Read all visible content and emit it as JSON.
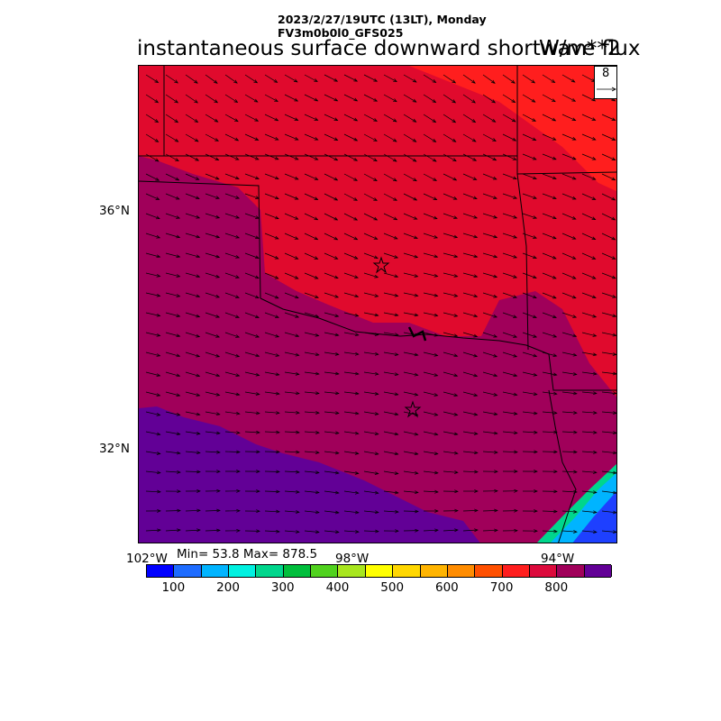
{
  "header": {
    "datetime": "2023/2/27/19UTC (13LT), Monday",
    "model": "FV3m0b0l0_GFS025",
    "title": "instantaneous surface downward shortwave flux",
    "units": "W/m**2"
  },
  "vector_legend": {
    "value": "8"
  },
  "axes": {
    "lat_labels": [
      "36°N",
      "32°N"
    ],
    "lon_labels": [
      "102°W",
      "98°W",
      "94°W"
    ]
  },
  "stats": {
    "text": "Min= 53.8 Max= 878.5"
  },
  "colorbar": {
    "colors": [
      "#0000ff",
      "#1e6cff",
      "#00b4ff",
      "#00f0e0",
      "#00d68c",
      "#00be3c",
      "#50d21e",
      "#a8e61e",
      "#ffff00",
      "#ffd700",
      "#ffb400",
      "#ff8c00",
      "#ff5000",
      "#ff1e1e",
      "#dc0a3c",
      "#a0005a",
      "#620096"
    ],
    "labels": [
      "100",
      "200",
      "300",
      "400",
      "500",
      "600",
      "700",
      "800"
    ]
  },
  "map_colors": {
    "red": "#e00a2d",
    "bright_red": "#ff1e1e",
    "maroon": "#a0005a",
    "purple": "#620096",
    "cyan": "#00b4ff",
    "blue": "#1e40ff",
    "green": "#00d68c"
  }
}
